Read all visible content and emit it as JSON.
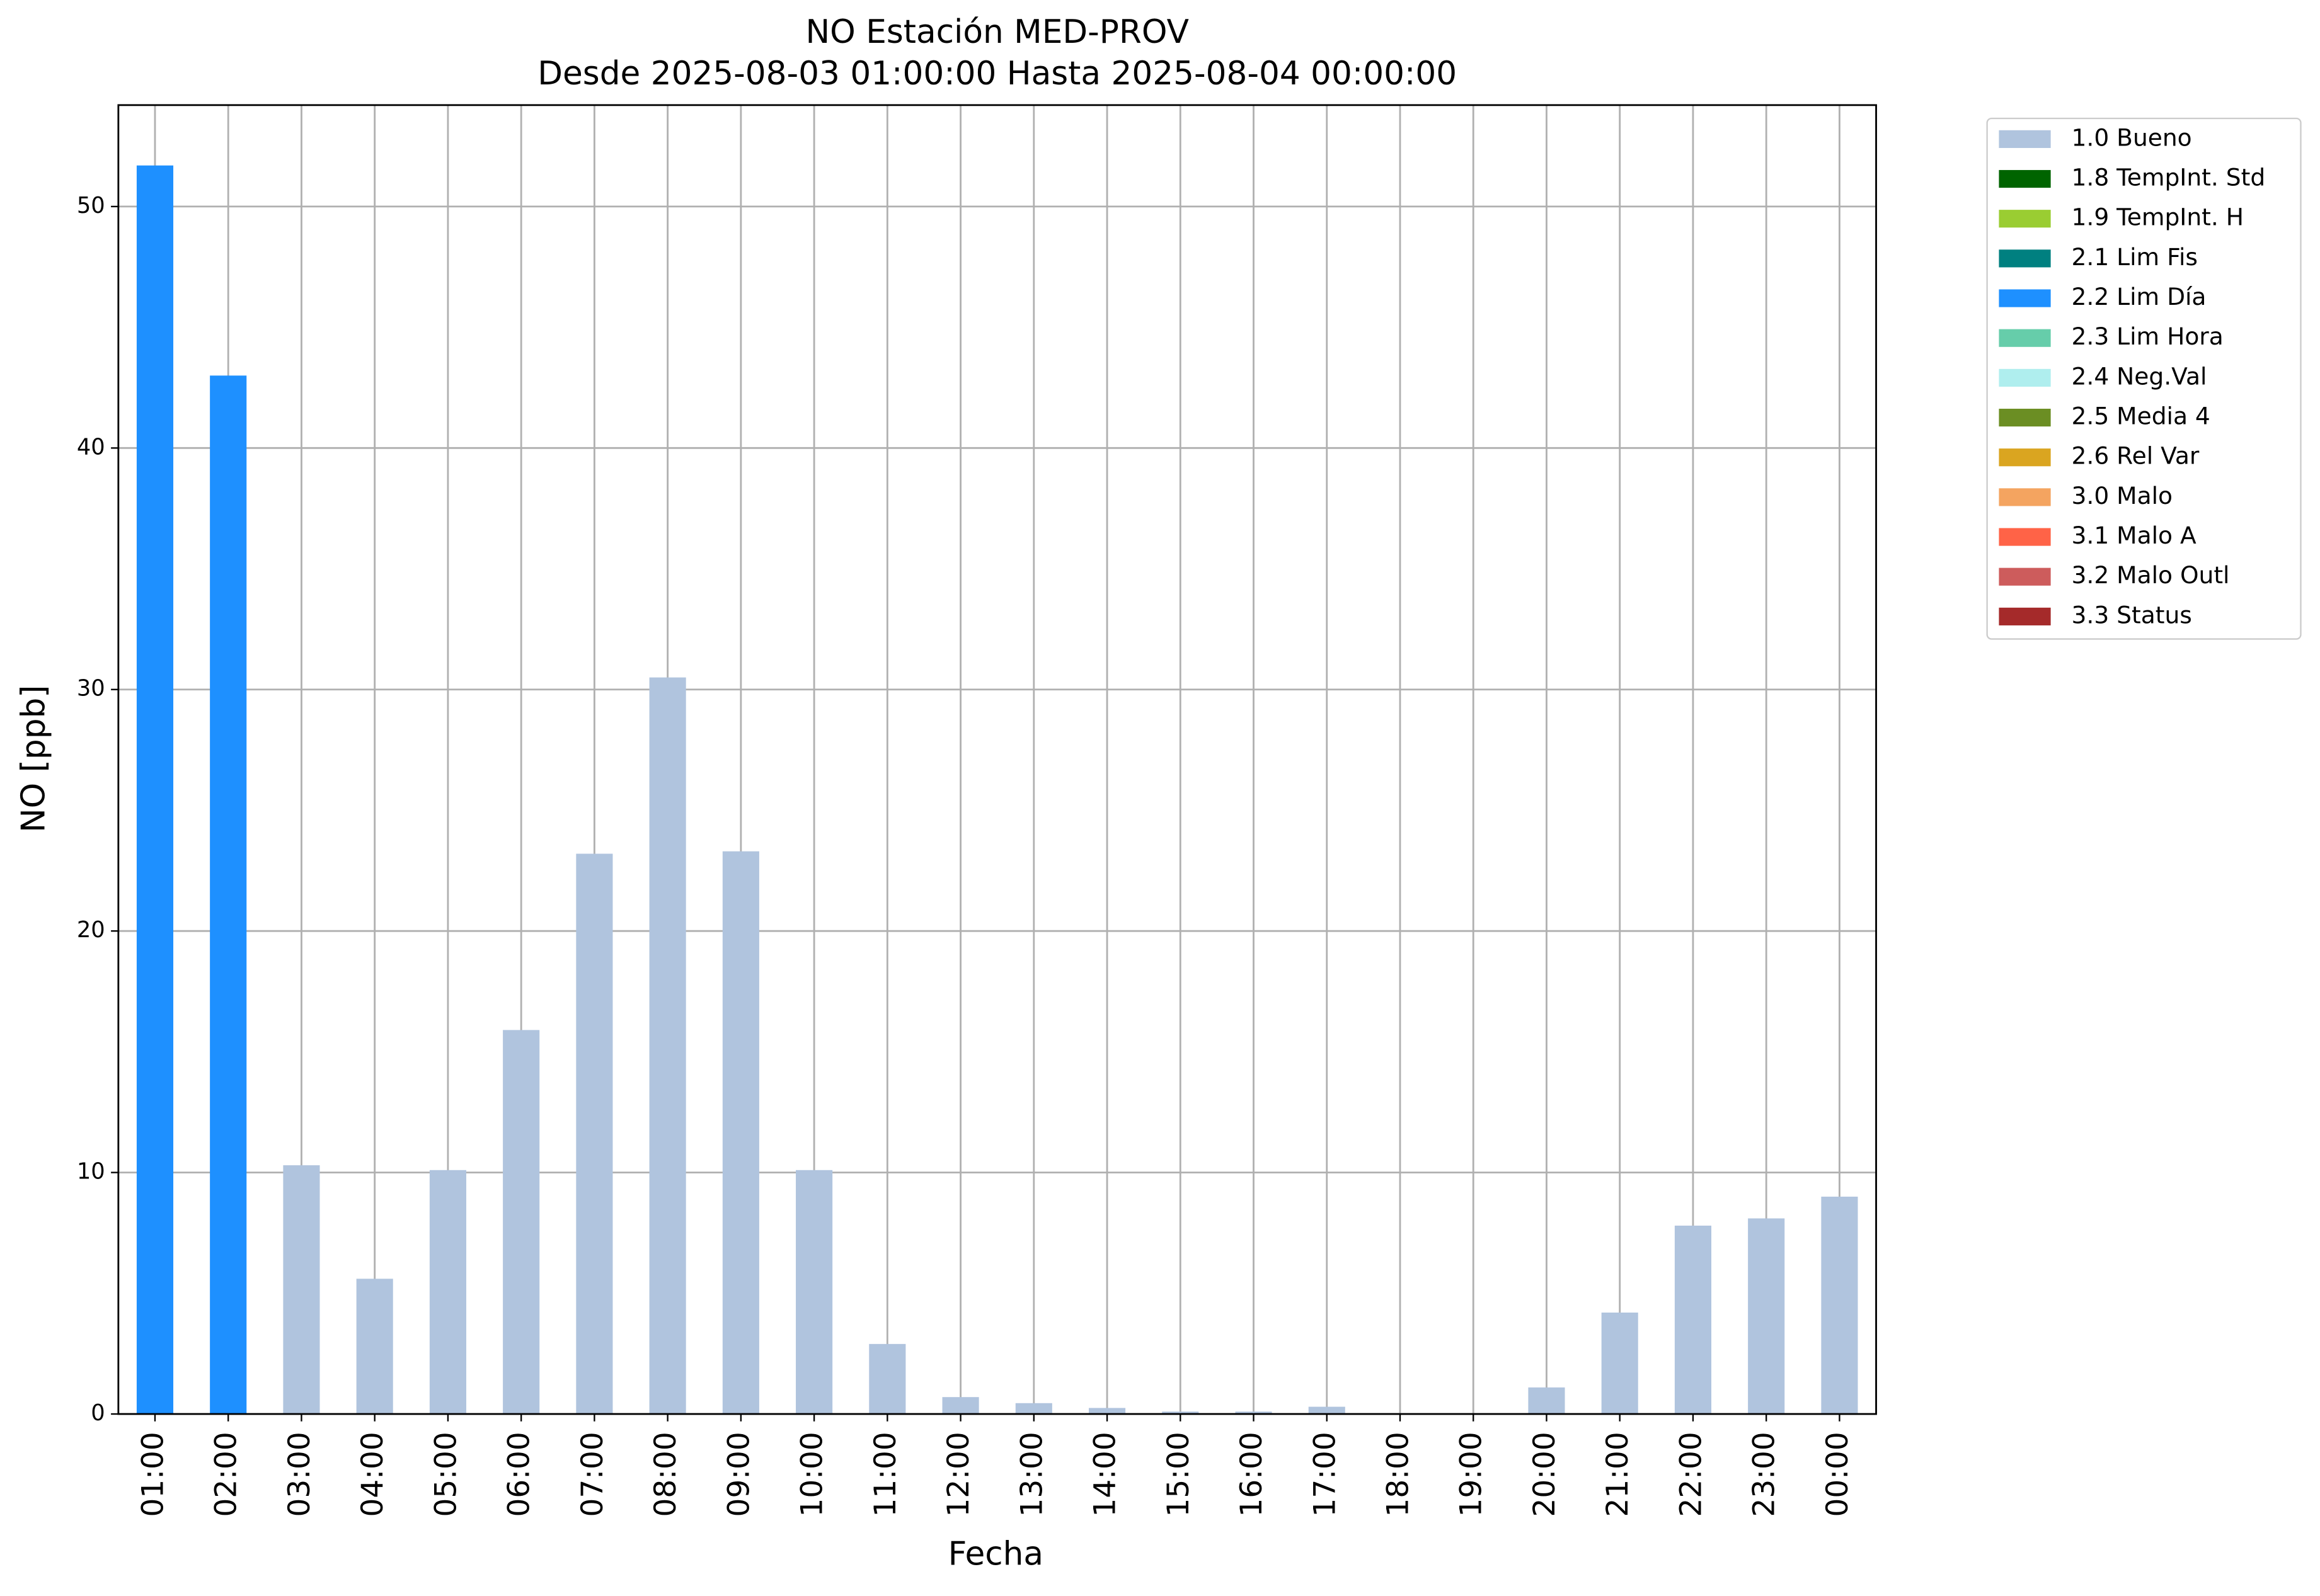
{
  "chart_data": {
    "type": "bar",
    "stacked": true,
    "title": "NO Estación MED-PROV",
    "subtitle": "Desde 2025-08-03 01:00:00 Hasta 2025-08-04 00:00:00",
    "x_label": "Fecha",
    "y_label": "NO [ppb]",
    "categories": [
      "01:00",
      "02:00",
      "03:00",
      "04:00",
      "05:00",
      "06:00",
      "07:00",
      "08:00",
      "09:00",
      "10:00",
      "11:00",
      "12:00",
      "13:00",
      "14:00",
      "15:00",
      "16:00",
      "17:00",
      "18:00",
      "19:00",
      "20:00",
      "21:00",
      "22:00",
      "23:00",
      "00:00"
    ],
    "series": [
      {
        "name": "1.0 Bueno",
        "color": "#b0c4de",
        "values": [
          null,
          null,
          10.3,
          5.6,
          10.1,
          15.9,
          23.2,
          30.5,
          23.3,
          10.1,
          2.9,
          0.7,
          0.45,
          0.25,
          0.1,
          0.1,
          0.3,
          0,
          0,
          1.1,
          4.2,
          7.8,
          8.1,
          9.0
        ]
      },
      {
        "name": "1.8 TempInt. Std",
        "color": "#006400",
        "values": [
          null,
          null,
          null,
          null,
          null,
          null,
          null,
          null,
          null,
          null,
          null,
          null,
          null,
          null,
          null,
          null,
          null,
          null,
          null,
          null,
          null,
          null,
          null,
          null
        ]
      },
      {
        "name": "1.9 TempInt. H",
        "color": "#9acd32",
        "values": [
          null,
          null,
          null,
          null,
          null,
          null,
          null,
          null,
          null,
          null,
          null,
          null,
          null,
          null,
          null,
          null,
          null,
          null,
          null,
          null,
          null,
          null,
          null,
          null
        ]
      },
      {
        "name": "2.1 Lim Fis",
        "color": "#008080",
        "values": [
          null,
          null,
          null,
          null,
          null,
          null,
          null,
          null,
          null,
          null,
          null,
          null,
          null,
          null,
          null,
          null,
          null,
          null,
          null,
          null,
          null,
          null,
          null,
          null
        ]
      },
      {
        "name": "2.2 Lim Día",
        "color": "#1e90ff",
        "values": [
          51.7,
          43.0,
          null,
          null,
          null,
          null,
          null,
          null,
          null,
          null,
          null,
          null,
          null,
          null,
          null,
          null,
          null,
          null,
          null,
          null,
          null,
          null,
          null,
          null
        ]
      },
      {
        "name": "2.3 Lim Hora",
        "color": "#66cdaa",
        "values": [
          null,
          null,
          null,
          null,
          null,
          null,
          null,
          null,
          null,
          null,
          null,
          null,
          null,
          null,
          null,
          null,
          null,
          null,
          null,
          null,
          null,
          null,
          null,
          null
        ]
      },
      {
        "name": "2.4 Neg.Val",
        "color": "#afeeee",
        "values": [
          null,
          null,
          null,
          null,
          null,
          null,
          null,
          null,
          null,
          null,
          null,
          null,
          null,
          null,
          null,
          null,
          null,
          null,
          null,
          null,
          null,
          null,
          null,
          null
        ]
      },
      {
        "name": "2.5 Media 4",
        "color": "#6b8e23",
        "values": [
          null,
          null,
          null,
          null,
          null,
          null,
          null,
          null,
          null,
          null,
          null,
          null,
          null,
          null,
          null,
          null,
          null,
          null,
          null,
          null,
          null,
          null,
          null,
          null
        ]
      },
      {
        "name": "2.6 Rel Var",
        "color": "#daa520",
        "values": [
          null,
          null,
          null,
          null,
          null,
          null,
          null,
          null,
          null,
          null,
          null,
          null,
          null,
          null,
          null,
          null,
          null,
          null,
          null,
          null,
          null,
          null,
          null,
          null
        ]
      },
      {
        "name": "3.0 Malo",
        "color": "#f4a460",
        "values": [
          null,
          null,
          null,
          null,
          null,
          null,
          null,
          null,
          null,
          null,
          null,
          null,
          null,
          null,
          null,
          null,
          null,
          null,
          null,
          null,
          null,
          null,
          null,
          null
        ]
      },
      {
        "name": "3.1 Malo A",
        "color": "#ff6347",
        "values": [
          null,
          null,
          null,
          null,
          null,
          null,
          null,
          null,
          null,
          null,
          null,
          null,
          null,
          null,
          null,
          null,
          null,
          null,
          null,
          null,
          null,
          null,
          null,
          null
        ]
      },
      {
        "name": "3.2 Malo Outl",
        "color": "#cd5c5c",
        "values": [
          null,
          null,
          null,
          null,
          null,
          null,
          null,
          null,
          null,
          null,
          null,
          null,
          null,
          null,
          null,
          null,
          null,
          null,
          null,
          null,
          null,
          null,
          null,
          null
        ]
      },
      {
        "name": "3.3 Status",
        "color": "#a52a2a",
        "values": [
          null,
          null,
          null,
          null,
          null,
          null,
          null,
          null,
          null,
          null,
          null,
          null,
          null,
          null,
          null,
          null,
          null,
          null,
          null,
          null,
          null,
          null,
          null,
          null
        ]
      }
    ],
    "ylim": [
      0,
      54.2
    ],
    "yticks": [
      0,
      10,
      20,
      30,
      40,
      50
    ],
    "grid": true,
    "legend": "outside-right"
  }
}
